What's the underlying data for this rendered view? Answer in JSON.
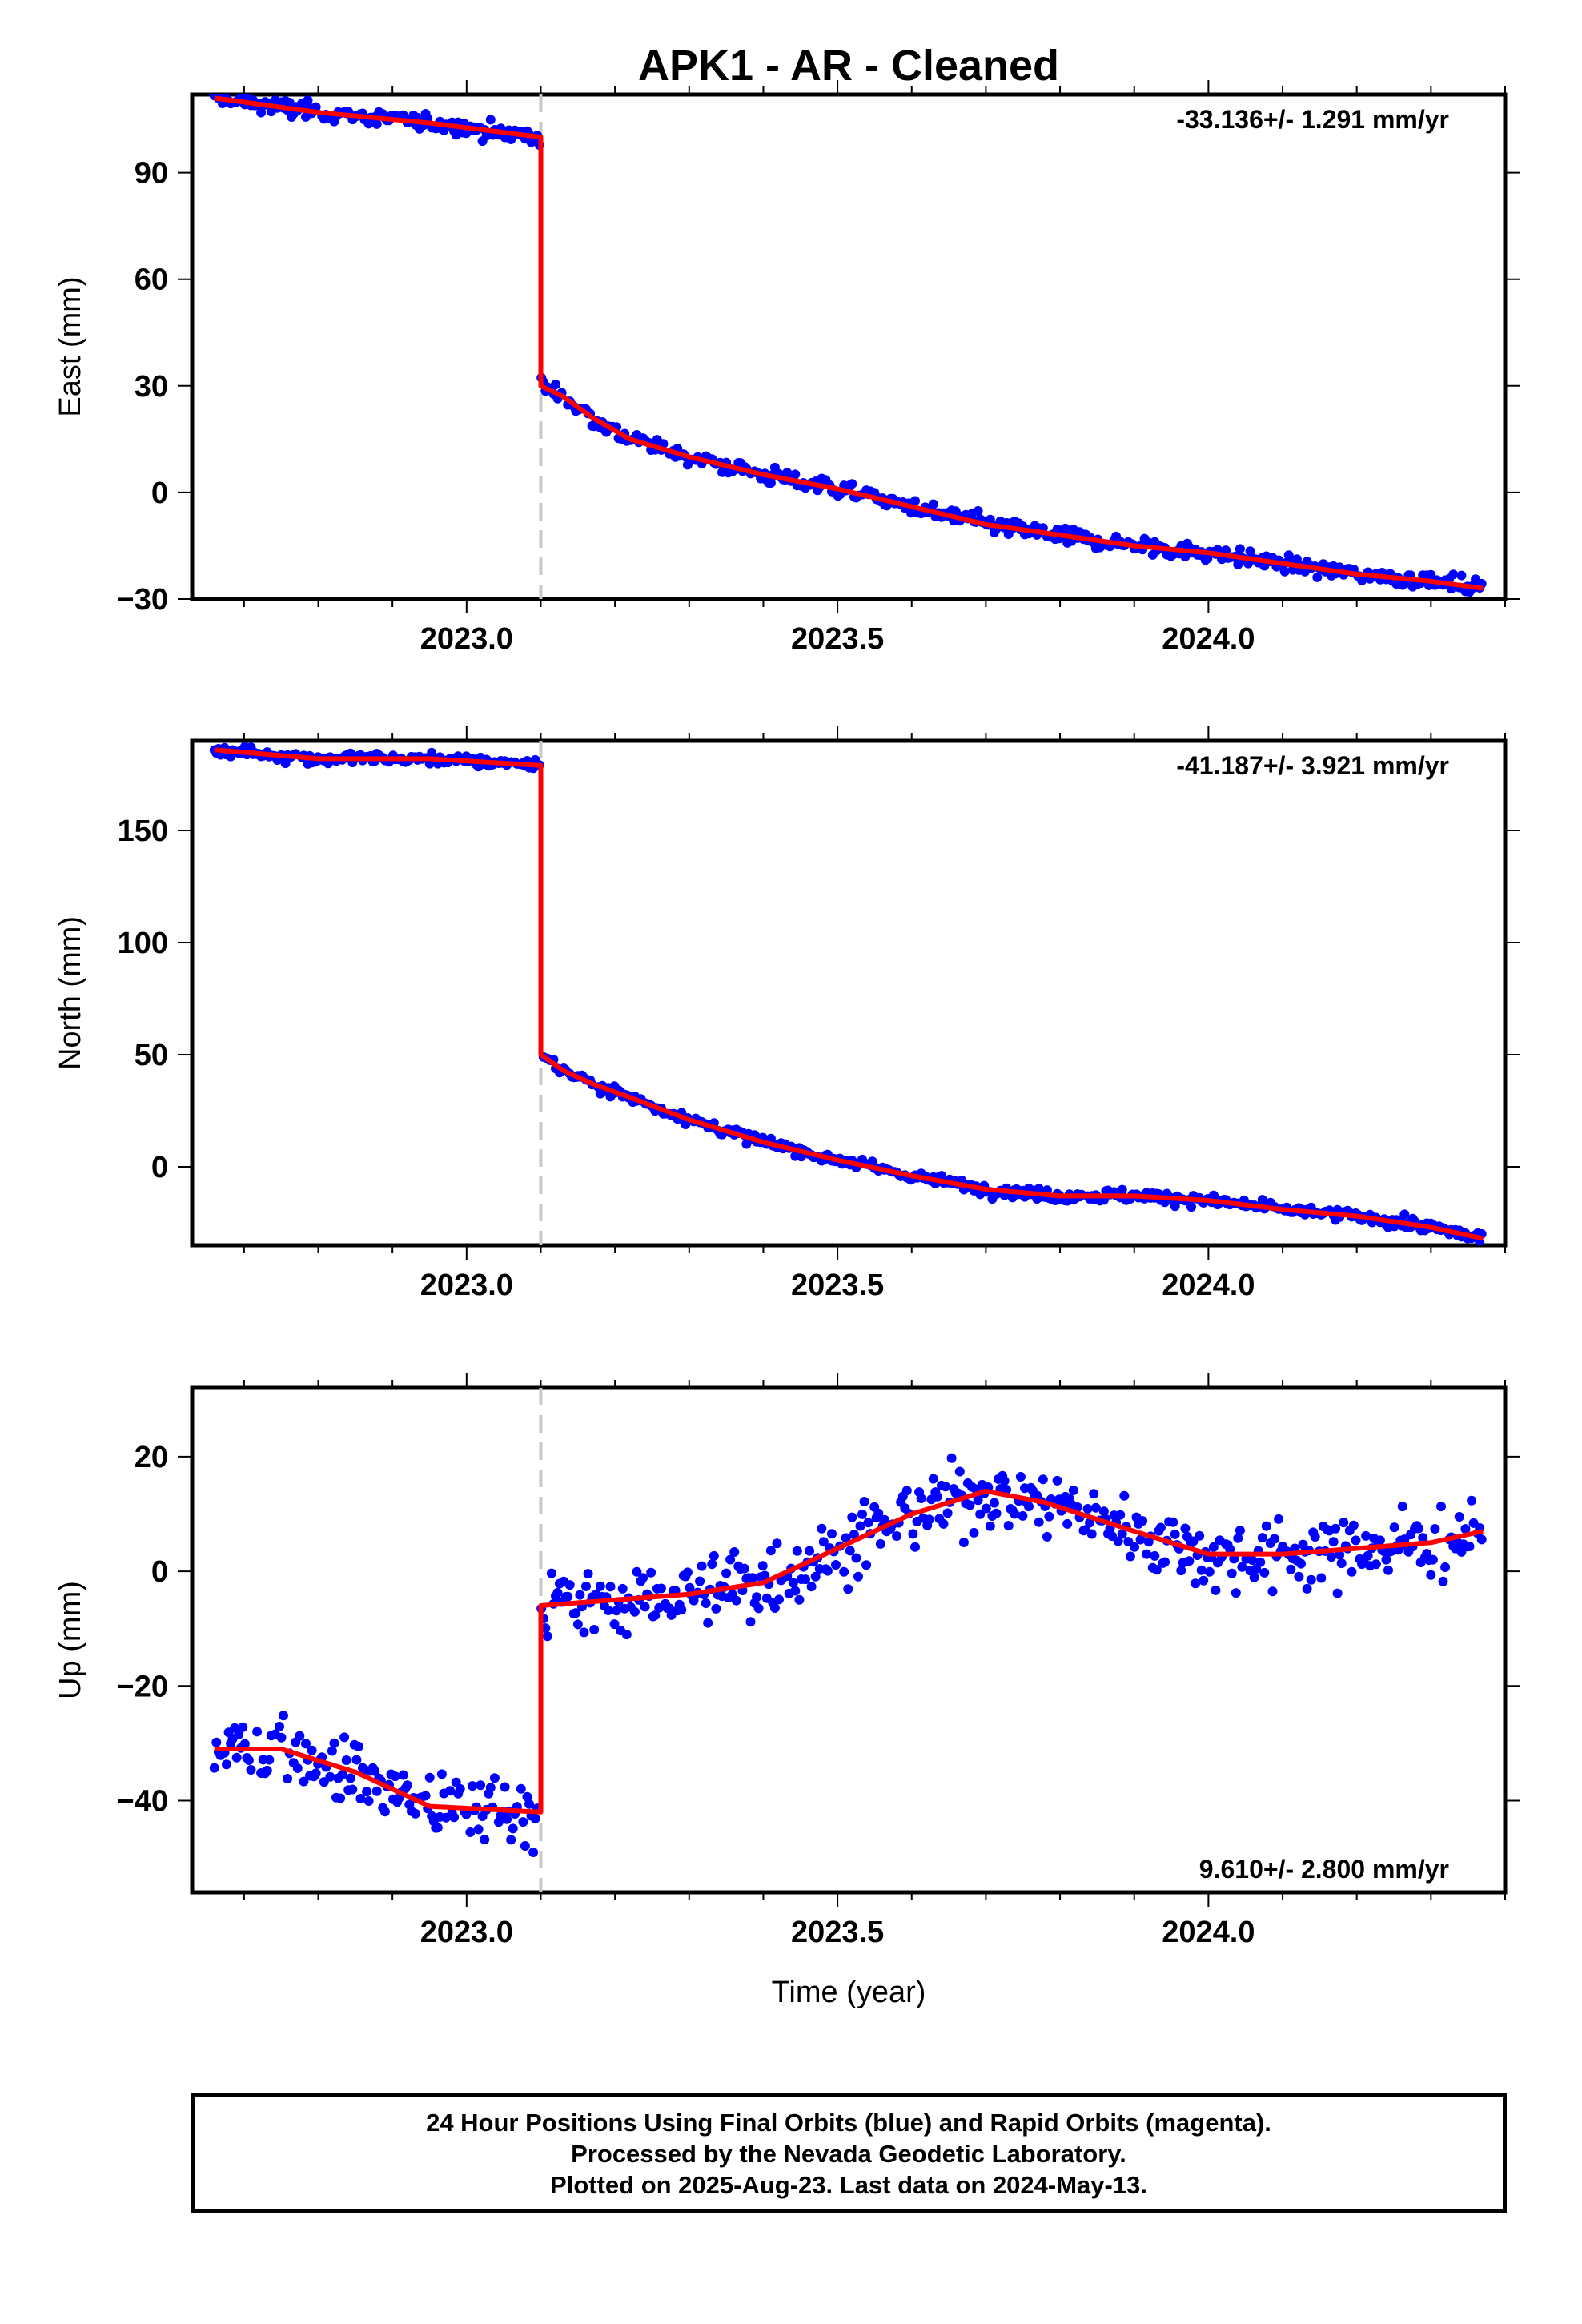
{
  "title": "APK1  - AR - Cleaned",
  "xlabel": "Time (year)",
  "footer": {
    "line1": "24 Hour Positions Using Final Orbits (blue) and Rapid Orbits (magenta).",
    "line2": "Processed by the Nevada Geodetic Laboratory.",
    "line3": "Plotted on 2025-Aug-23. Last data on 2024-May-13."
  },
  "colors": {
    "points": "#0000ff",
    "model": "#ff0000",
    "offset_line": "#c8c8c8"
  },
  "chart_data": [
    {
      "type": "scatter",
      "ylabel": "East (mm)",
      "rate_text": "-33.136+/- 1.291 mm/yr",
      "rate_position": "top-right",
      "xlim": [
        2022.63,
        2024.4
      ],
      "ylim": [
        -30,
        112
      ],
      "yticks": [
        -30,
        0,
        30,
        60,
        90
      ],
      "xticks": [
        2023.0,
        2023.5,
        2024.0
      ],
      "offset_epoch": 2023.1,
      "data_start": 2022.66,
      "data_end": 2024.37,
      "model_line": [
        [
          2022.66,
          111
        ],
        [
          2022.8,
          107
        ],
        [
          2022.95,
          104
        ],
        [
          2023.1,
          100
        ],
        [
          2023.1,
          30
        ],
        [
          2023.13,
          27
        ],
        [
          2023.17,
          21
        ],
        [
          2023.22,
          15
        ],
        [
          2023.3,
          10
        ],
        [
          2023.4,
          5
        ],
        [
          2023.5,
          1
        ],
        [
          2023.6,
          -4
        ],
        [
          2023.7,
          -9
        ],
        [
          2023.8,
          -12
        ],
        [
          2023.9,
          -15
        ],
        [
          2024.0,
          -17
        ],
        [
          2024.1,
          -20
        ],
        [
          2024.2,
          -23
        ],
        [
          2024.3,
          -25
        ],
        [
          2024.37,
          -27
        ]
      ],
      "scatter_sigma": 1.6
    },
    {
      "type": "scatter",
      "ylabel": "North (mm)",
      "rate_text": "-41.187+/- 3.921 mm/yr",
      "rate_position": "top-right",
      "xlim": [
        2022.63,
        2024.4
      ],
      "ylim": [
        -35,
        190
      ],
      "yticks": [
        0,
        50,
        100,
        150
      ],
      "xticks": [
        2023.0,
        2023.5,
        2024.0
      ],
      "offset_epoch": 2023.1,
      "data_start": 2022.66,
      "data_end": 2024.37,
      "model_line": [
        [
          2022.66,
          186
        ],
        [
          2022.8,
          182
        ],
        [
          2022.95,
          182
        ],
        [
          2023.1,
          179
        ],
        [
          2023.1,
          50
        ],
        [
          2023.13,
          43
        ],
        [
          2023.17,
          37
        ],
        [
          2023.22,
          31
        ],
        [
          2023.3,
          21
        ],
        [
          2023.4,
          11
        ],
        [
          2023.5,
          3
        ],
        [
          2023.6,
          -4
        ],
        [
          2023.7,
          -10
        ],
        [
          2023.8,
          -13
        ],
        [
          2023.9,
          -13
        ],
        [
          2024.0,
          -15
        ],
        [
          2024.1,
          -19
        ],
        [
          2024.2,
          -22
        ],
        [
          2024.3,
          -27
        ],
        [
          2024.37,
          -32
        ]
      ],
      "scatter_sigma": 1.8
    },
    {
      "type": "scatter",
      "ylabel": "Up (mm)",
      "rate_text": "9.610+/- 2.800 mm/yr",
      "rate_position": "bottom-right",
      "xlim": [
        2022.63,
        2024.4
      ],
      "ylim": [
        -56,
        32
      ],
      "yticks": [
        -40,
        -20,
        0,
        20
      ],
      "xticks": [
        2023.0,
        2023.5,
        2024.0
      ],
      "offset_epoch": 2023.1,
      "data_start": 2022.66,
      "data_end": 2024.37,
      "model_line": [
        [
          2022.66,
          -31
        ],
        [
          2022.75,
          -31
        ],
        [
          2022.85,
          -35
        ],
        [
          2022.95,
          -41
        ],
        [
          2023.1,
          -42
        ],
        [
          2023.1,
          -6
        ],
        [
          2023.2,
          -5
        ],
        [
          2023.3,
          -4
        ],
        [
          2023.4,
          -2
        ],
        [
          2023.5,
          4
        ],
        [
          2023.6,
          10
        ],
        [
          2023.7,
          14
        ],
        [
          2023.78,
          12
        ],
        [
          2023.9,
          7
        ],
        [
          2024.0,
          3
        ],
        [
          2024.1,
          3
        ],
        [
          2024.2,
          4
        ],
        [
          2024.3,
          5
        ],
        [
          2024.37,
          7
        ]
      ],
      "scatter_sigma": 4.2
    }
  ]
}
